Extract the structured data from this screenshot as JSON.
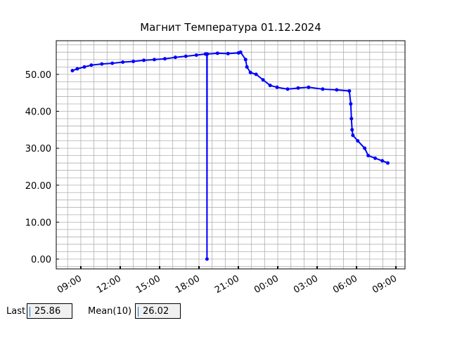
{
  "chart_data": {
    "type": "line",
    "title": "Магнит Температура 01.12.2024",
    "x": [
      8.36,
      8.73,
      9.27,
      9.8,
      10.6,
      11.4,
      12.2,
      13.0,
      13.8,
      14.6,
      15.4,
      16.2,
      17.0,
      17.8,
      18.5,
      18.6,
      18.61,
      18.62,
      19.41,
      20.21,
      21.01,
      21.17,
      21.55,
      21.65,
      21.92,
      22.35,
      22.88,
      23.42,
      23.95,
      24.75,
      25.55,
      26.35,
      27.42,
      28.49,
      29.45,
      29.56,
      29.61,
      29.66,
      29.72,
      30.09,
      30.62,
      30.89,
      31.42,
      31.96,
      32.38
    ],
    "series": [
      {
        "name": "Магнит",
        "color": "#0000ff",
        "values": [
          51,
          51.5,
          52,
          52.5,
          52.8,
          53,
          53.3,
          53.5,
          53.8,
          54,
          54.2,
          54.6,
          54.9,
          55.2,
          55.5,
          55.4,
          0,
          55.5,
          55.7,
          55.6,
          55.8,
          56,
          54,
          52,
          50.5,
          50,
          48.5,
          47,
          46.5,
          46,
          46.3,
          46.5,
          46,
          45.8,
          45.5,
          42,
          38,
          35,
          33.5,
          32,
          30,
          28,
          27.3,
          26.6,
          26
        ]
      }
    ],
    "xlim": [
      7.13,
      33.69
    ],
    "ylim": [
      -2.66,
      59.1
    ],
    "xticks": [
      {
        "value": 9,
        "label": "09:00"
      },
      {
        "value": 12,
        "label": "12:00"
      },
      {
        "value": 15,
        "label": "15:00"
      },
      {
        "value": 18,
        "label": "18:00"
      },
      {
        "value": 21,
        "label": "21:00"
      },
      {
        "value": 24,
        "label": "00:00"
      },
      {
        "value": 27,
        "label": "03:00"
      },
      {
        "value": 30,
        "label": "06:00"
      },
      {
        "value": 33,
        "label": "09:00"
      }
    ],
    "yticks": [
      {
        "value": 0,
        "label": "0.00"
      },
      {
        "value": 10,
        "label": "10.00"
      },
      {
        "value": 20,
        "label": "20.00"
      },
      {
        "value": 30,
        "label": "30.00"
      },
      {
        "value": 40,
        "label": "40.00"
      },
      {
        "value": 50,
        "label": "50.00"
      }
    ],
    "minor_xticks": [
      8,
      9,
      10,
      11,
      12,
      13,
      14,
      15,
      16,
      17,
      18,
      19,
      20,
      21,
      22,
      23,
      24,
      25,
      26,
      27,
      28,
      29,
      30,
      31,
      32,
      33
    ],
    "minor_yticks": [
      -2,
      0,
      2,
      4,
      6,
      8,
      10,
      12,
      14,
      16,
      18,
      20,
      22,
      24,
      26,
      28,
      30,
      32,
      34,
      36,
      38,
      40,
      42,
      44,
      46,
      48,
      50,
      52,
      54,
      56,
      58
    ],
    "grid": true
  },
  "controls": {
    "last_label": "Last",
    "last_value": "25.86",
    "mean_label": "Mean(10)",
    "mean_value": "26.02"
  }
}
